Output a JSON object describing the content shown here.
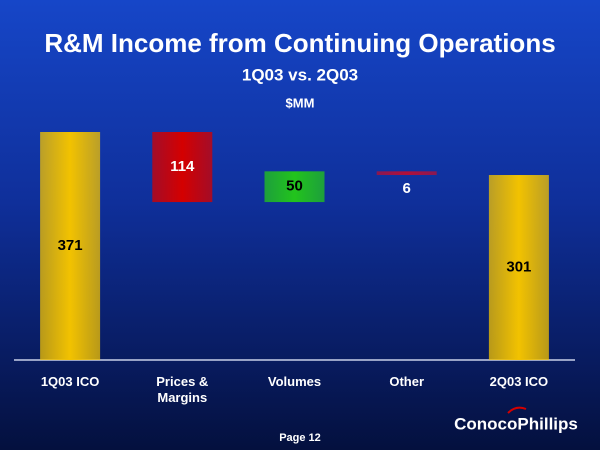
{
  "chart_data": {
    "type": "waterfall",
    "title": "R&M Income from Continuing Operations",
    "subtitle": "1Q03 vs. 2Q03",
    "unit": "$MM",
    "categories": [
      "1Q03 ICO",
      "Prices & Margins",
      "Volumes",
      "Other",
      "2Q03 ICO"
    ],
    "values": [
      371,
      -114,
      50,
      -6,
      301
    ],
    "value_labels": [
      "371",
      "114",
      "50",
      "6",
      "301"
    ],
    "colors": [
      "#f2c200",
      "#d40000",
      "#22c41c",
      "#b0103a",
      "#f2c200"
    ],
    "label_colors": [
      "#000000",
      "#ffffff",
      "#000000",
      "#ffffff",
      "#000000"
    ]
  },
  "footer": {
    "page": "Page 12",
    "logo": "ConocoPhillips"
  }
}
